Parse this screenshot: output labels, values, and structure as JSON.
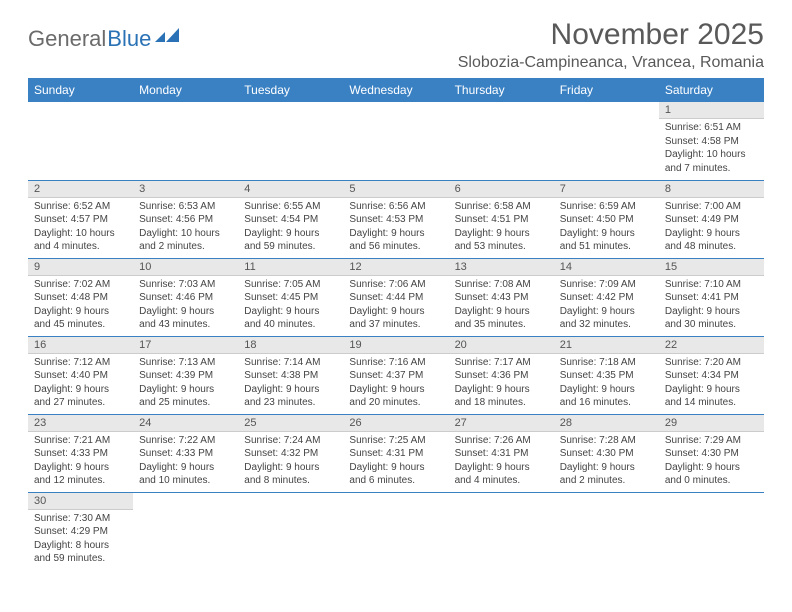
{
  "logo": {
    "text1": "General",
    "text2": "Blue"
  },
  "title": "November 2025",
  "location": "Slobozia-Campineanca, Vrancea, Romania",
  "colors": {
    "header_bg": "#3a81c4",
    "header_text": "#ffffff",
    "row_divider": "#3a81c4",
    "daynum_bg": "#e8e8e8",
    "text": "#444444"
  },
  "weekdays": [
    "Sunday",
    "Monday",
    "Tuesday",
    "Wednesday",
    "Thursday",
    "Friday",
    "Saturday"
  ],
  "weeks": [
    [
      {
        "n": "",
        "sr": "",
        "ss": "",
        "dl": ""
      },
      {
        "n": "",
        "sr": "",
        "ss": "",
        "dl": ""
      },
      {
        "n": "",
        "sr": "",
        "ss": "",
        "dl": ""
      },
      {
        "n": "",
        "sr": "",
        "ss": "",
        "dl": ""
      },
      {
        "n": "",
        "sr": "",
        "ss": "",
        "dl": ""
      },
      {
        "n": "",
        "sr": "",
        "ss": "",
        "dl": ""
      },
      {
        "n": "1",
        "sr": "Sunrise: 6:51 AM",
        "ss": "Sunset: 4:58 PM",
        "dl": "Daylight: 10 hours and 7 minutes."
      }
    ],
    [
      {
        "n": "2",
        "sr": "Sunrise: 6:52 AM",
        "ss": "Sunset: 4:57 PM",
        "dl": "Daylight: 10 hours and 4 minutes."
      },
      {
        "n": "3",
        "sr": "Sunrise: 6:53 AM",
        "ss": "Sunset: 4:56 PM",
        "dl": "Daylight: 10 hours and 2 minutes."
      },
      {
        "n": "4",
        "sr": "Sunrise: 6:55 AM",
        "ss": "Sunset: 4:54 PM",
        "dl": "Daylight: 9 hours and 59 minutes."
      },
      {
        "n": "5",
        "sr": "Sunrise: 6:56 AM",
        "ss": "Sunset: 4:53 PM",
        "dl": "Daylight: 9 hours and 56 minutes."
      },
      {
        "n": "6",
        "sr": "Sunrise: 6:58 AM",
        "ss": "Sunset: 4:51 PM",
        "dl": "Daylight: 9 hours and 53 minutes."
      },
      {
        "n": "7",
        "sr": "Sunrise: 6:59 AM",
        "ss": "Sunset: 4:50 PM",
        "dl": "Daylight: 9 hours and 51 minutes."
      },
      {
        "n": "8",
        "sr": "Sunrise: 7:00 AM",
        "ss": "Sunset: 4:49 PM",
        "dl": "Daylight: 9 hours and 48 minutes."
      }
    ],
    [
      {
        "n": "9",
        "sr": "Sunrise: 7:02 AM",
        "ss": "Sunset: 4:48 PM",
        "dl": "Daylight: 9 hours and 45 minutes."
      },
      {
        "n": "10",
        "sr": "Sunrise: 7:03 AM",
        "ss": "Sunset: 4:46 PM",
        "dl": "Daylight: 9 hours and 43 minutes."
      },
      {
        "n": "11",
        "sr": "Sunrise: 7:05 AM",
        "ss": "Sunset: 4:45 PM",
        "dl": "Daylight: 9 hours and 40 minutes."
      },
      {
        "n": "12",
        "sr": "Sunrise: 7:06 AM",
        "ss": "Sunset: 4:44 PM",
        "dl": "Daylight: 9 hours and 37 minutes."
      },
      {
        "n": "13",
        "sr": "Sunrise: 7:08 AM",
        "ss": "Sunset: 4:43 PM",
        "dl": "Daylight: 9 hours and 35 minutes."
      },
      {
        "n": "14",
        "sr": "Sunrise: 7:09 AM",
        "ss": "Sunset: 4:42 PM",
        "dl": "Daylight: 9 hours and 32 minutes."
      },
      {
        "n": "15",
        "sr": "Sunrise: 7:10 AM",
        "ss": "Sunset: 4:41 PM",
        "dl": "Daylight: 9 hours and 30 minutes."
      }
    ],
    [
      {
        "n": "16",
        "sr": "Sunrise: 7:12 AM",
        "ss": "Sunset: 4:40 PM",
        "dl": "Daylight: 9 hours and 27 minutes."
      },
      {
        "n": "17",
        "sr": "Sunrise: 7:13 AM",
        "ss": "Sunset: 4:39 PM",
        "dl": "Daylight: 9 hours and 25 minutes."
      },
      {
        "n": "18",
        "sr": "Sunrise: 7:14 AM",
        "ss": "Sunset: 4:38 PM",
        "dl": "Daylight: 9 hours and 23 minutes."
      },
      {
        "n": "19",
        "sr": "Sunrise: 7:16 AM",
        "ss": "Sunset: 4:37 PM",
        "dl": "Daylight: 9 hours and 20 minutes."
      },
      {
        "n": "20",
        "sr": "Sunrise: 7:17 AM",
        "ss": "Sunset: 4:36 PM",
        "dl": "Daylight: 9 hours and 18 minutes."
      },
      {
        "n": "21",
        "sr": "Sunrise: 7:18 AM",
        "ss": "Sunset: 4:35 PM",
        "dl": "Daylight: 9 hours and 16 minutes."
      },
      {
        "n": "22",
        "sr": "Sunrise: 7:20 AM",
        "ss": "Sunset: 4:34 PM",
        "dl": "Daylight: 9 hours and 14 minutes."
      }
    ],
    [
      {
        "n": "23",
        "sr": "Sunrise: 7:21 AM",
        "ss": "Sunset: 4:33 PM",
        "dl": "Daylight: 9 hours and 12 minutes."
      },
      {
        "n": "24",
        "sr": "Sunrise: 7:22 AM",
        "ss": "Sunset: 4:33 PM",
        "dl": "Daylight: 9 hours and 10 minutes."
      },
      {
        "n": "25",
        "sr": "Sunrise: 7:24 AM",
        "ss": "Sunset: 4:32 PM",
        "dl": "Daylight: 9 hours and 8 minutes."
      },
      {
        "n": "26",
        "sr": "Sunrise: 7:25 AM",
        "ss": "Sunset: 4:31 PM",
        "dl": "Daylight: 9 hours and 6 minutes."
      },
      {
        "n": "27",
        "sr": "Sunrise: 7:26 AM",
        "ss": "Sunset: 4:31 PM",
        "dl": "Daylight: 9 hours and 4 minutes."
      },
      {
        "n": "28",
        "sr": "Sunrise: 7:28 AM",
        "ss": "Sunset: 4:30 PM",
        "dl": "Daylight: 9 hours and 2 minutes."
      },
      {
        "n": "29",
        "sr": "Sunrise: 7:29 AM",
        "ss": "Sunset: 4:30 PM",
        "dl": "Daylight: 9 hours and 0 minutes."
      }
    ],
    [
      {
        "n": "30",
        "sr": "Sunrise: 7:30 AM",
        "ss": "Sunset: 4:29 PM",
        "dl": "Daylight: 8 hours and 59 minutes."
      },
      {
        "n": "",
        "sr": "",
        "ss": "",
        "dl": ""
      },
      {
        "n": "",
        "sr": "",
        "ss": "",
        "dl": ""
      },
      {
        "n": "",
        "sr": "",
        "ss": "",
        "dl": ""
      },
      {
        "n": "",
        "sr": "",
        "ss": "",
        "dl": ""
      },
      {
        "n": "",
        "sr": "",
        "ss": "",
        "dl": ""
      },
      {
        "n": "",
        "sr": "",
        "ss": "",
        "dl": ""
      }
    ]
  ]
}
